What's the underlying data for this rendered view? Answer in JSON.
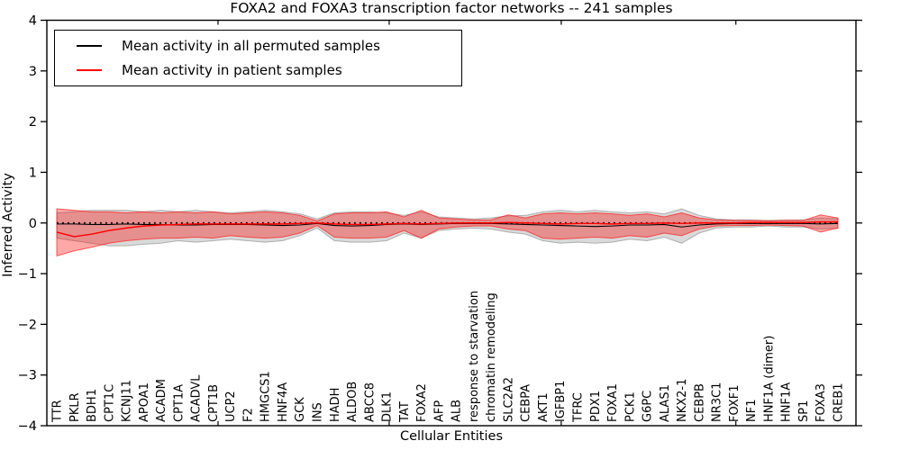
{
  "chart_data": {
    "type": "line",
    "title": "FOXA2 and FOXA3 transcription factor networks -- 241 samples",
    "xlabel": "Cellular Entities",
    "ylabel": "Inferred Activity",
    "ylim": [
      -4,
      4
    ],
    "grid": false,
    "legend_position": "upper left",
    "frame_color": "#000000",
    "yticks": {
      "values": [
        4,
        3,
        2,
        1,
        0,
        -1,
        -2,
        -3,
        -4
      ],
      "labels": [
        "4",
        "3",
        "2",
        "1",
        "0",
        "−1",
        "−2",
        "−3",
        "−4"
      ]
    },
    "categories": [
      "TTR",
      "PKLR",
      "BDH1",
      "CPT1C",
      "KCNJ11",
      "APOA1",
      "ACADM",
      "CPT1A",
      "ACADVL",
      "CPT1B",
      "UCP2",
      "F2",
      "HMGCS1",
      "HNF4A",
      "GCK",
      "INS",
      "HADH",
      "ALDOB",
      "ABCC8",
      "DLK1",
      "TAT",
      "FOXA2",
      "AFP",
      "ALB",
      "response to starvation",
      "chromatin remodeling",
      "SLC2A2",
      "CEBPA",
      "AKT1",
      "IGFBP1",
      "TFRC",
      "PDX1",
      "FOXA1",
      "PCK1",
      "G6PC",
      "ALAS1",
      "NKX2-1",
      "CEBPB",
      "NR3C1",
      "FOXF1",
      "NF1",
      "HNF1A (dimer)",
      "HNF1A",
      "SP1",
      "FOXA3",
      "CREB1"
    ],
    "zero_line": {
      "value": 0,
      "color": "#000000",
      "style": "dotted"
    },
    "series": [
      {
        "name": "Mean activity in all permuted samples",
        "color": "#000000",
        "values": [
          -0.02,
          -0.02,
          -0.03,
          -0.03,
          -0.02,
          -0.03,
          -0.03,
          -0.04,
          -0.04,
          -0.03,
          -0.03,
          -0.03,
          -0.04,
          -0.05,
          -0.04,
          -0.01,
          -0.05,
          -0.06,
          -0.05,
          -0.03,
          -0.02,
          -0.03,
          -0.02,
          -0.01,
          -0.01,
          -0.01,
          -0.02,
          -0.03,
          -0.04,
          -0.05,
          -0.06,
          -0.07,
          -0.06,
          -0.04,
          -0.04,
          -0.03,
          -0.08,
          -0.04,
          -0.02,
          -0.01,
          -0.01,
          -0.01,
          -0.01,
          -0.01,
          -0.02,
          -0.01
        ]
      },
      {
        "name": "Mean activity in patient samples",
        "color": "#ff0000",
        "values": [
          -0.18,
          -0.27,
          -0.22,
          -0.15,
          -0.1,
          -0.06,
          -0.04,
          -0.03,
          -0.02,
          -0.02,
          -0.02,
          -0.02,
          -0.02,
          -0.02,
          -0.01,
          0.0,
          -0.02,
          -0.03,
          -0.03,
          -0.02,
          -0.01,
          -0.02,
          -0.01,
          0.0,
          0.0,
          0.0,
          0.01,
          0.0,
          -0.01,
          -0.02,
          -0.01,
          -0.01,
          -0.02,
          -0.01,
          -0.01,
          0.0,
          -0.01,
          0.0,
          0.0,
          0.0,
          0.01,
          0.01,
          0.01,
          0.01,
          0.02,
          0.02
        ]
      }
    ],
    "bands": [
      {
        "name": "permuted-std-band",
        "fill": "#808080",
        "fill_opacity": 0.3,
        "edge": "#808080",
        "edge_opacity": 0.55,
        "upper": [
          0.2,
          0.22,
          0.25,
          0.25,
          0.25,
          0.22,
          0.25,
          0.22,
          0.25,
          0.22,
          0.2,
          0.22,
          0.25,
          0.22,
          0.18,
          0.08,
          0.2,
          0.22,
          0.22,
          0.2,
          0.15,
          0.22,
          0.12,
          0.1,
          0.08,
          0.1,
          0.14,
          0.15,
          0.22,
          0.25,
          0.22,
          0.25,
          0.22,
          0.2,
          0.22,
          0.18,
          0.28,
          0.15,
          0.08,
          0.06,
          0.06,
          0.05,
          0.06,
          0.06,
          0.1,
          0.08
        ],
        "lower": [
          -0.3,
          -0.35,
          -0.4,
          -0.45,
          -0.45,
          -0.42,
          -0.4,
          -0.35,
          -0.38,
          -0.35,
          -0.32,
          -0.35,
          -0.38,
          -0.35,
          -0.25,
          -0.1,
          -0.35,
          -0.38,
          -0.38,
          -0.35,
          -0.2,
          -0.3,
          -0.15,
          -0.12,
          -0.1,
          -0.12,
          -0.18,
          -0.22,
          -0.35,
          -0.4,
          -0.38,
          -0.4,
          -0.38,
          -0.32,
          -0.35,
          -0.28,
          -0.4,
          -0.2,
          -0.1,
          -0.08,
          -0.08,
          -0.06,
          -0.08,
          -0.08,
          -0.12,
          -0.1
        ]
      },
      {
        "name": "patient-std-band",
        "fill": "#ff0000",
        "fill_opacity": 0.34,
        "edge": "#ff0000",
        "edge_opacity": 0.6,
        "upper": [
          0.28,
          0.25,
          0.22,
          0.22,
          0.2,
          0.22,
          0.2,
          0.22,
          0.2,
          0.22,
          0.18,
          0.2,
          0.22,
          0.2,
          0.15,
          0.04,
          0.18,
          0.2,
          0.2,
          0.22,
          0.12,
          0.25,
          0.1,
          0.08,
          0.06,
          0.06,
          0.16,
          0.1,
          0.18,
          0.2,
          0.18,
          0.2,
          0.18,
          0.15,
          0.18,
          0.12,
          0.2,
          0.1,
          0.06,
          0.05,
          0.05,
          0.04,
          0.05,
          0.05,
          0.16,
          0.1
        ],
        "lower": [
          -0.65,
          -0.55,
          -0.48,
          -0.4,
          -0.35,
          -0.32,
          -0.3,
          -0.3,
          -0.28,
          -0.3,
          -0.25,
          -0.28,
          -0.3,
          -0.28,
          -0.2,
          -0.05,
          -0.28,
          -0.3,
          -0.3,
          -0.28,
          -0.15,
          -0.3,
          -0.12,
          -0.08,
          -0.06,
          -0.06,
          -0.12,
          -0.15,
          -0.3,
          -0.32,
          -0.3,
          -0.28,
          -0.3,
          -0.25,
          -0.28,
          -0.2,
          -0.25,
          -0.12,
          -0.06,
          -0.05,
          -0.05,
          -0.04,
          -0.05,
          -0.06,
          -0.18,
          -0.1
        ]
      }
    ]
  }
}
